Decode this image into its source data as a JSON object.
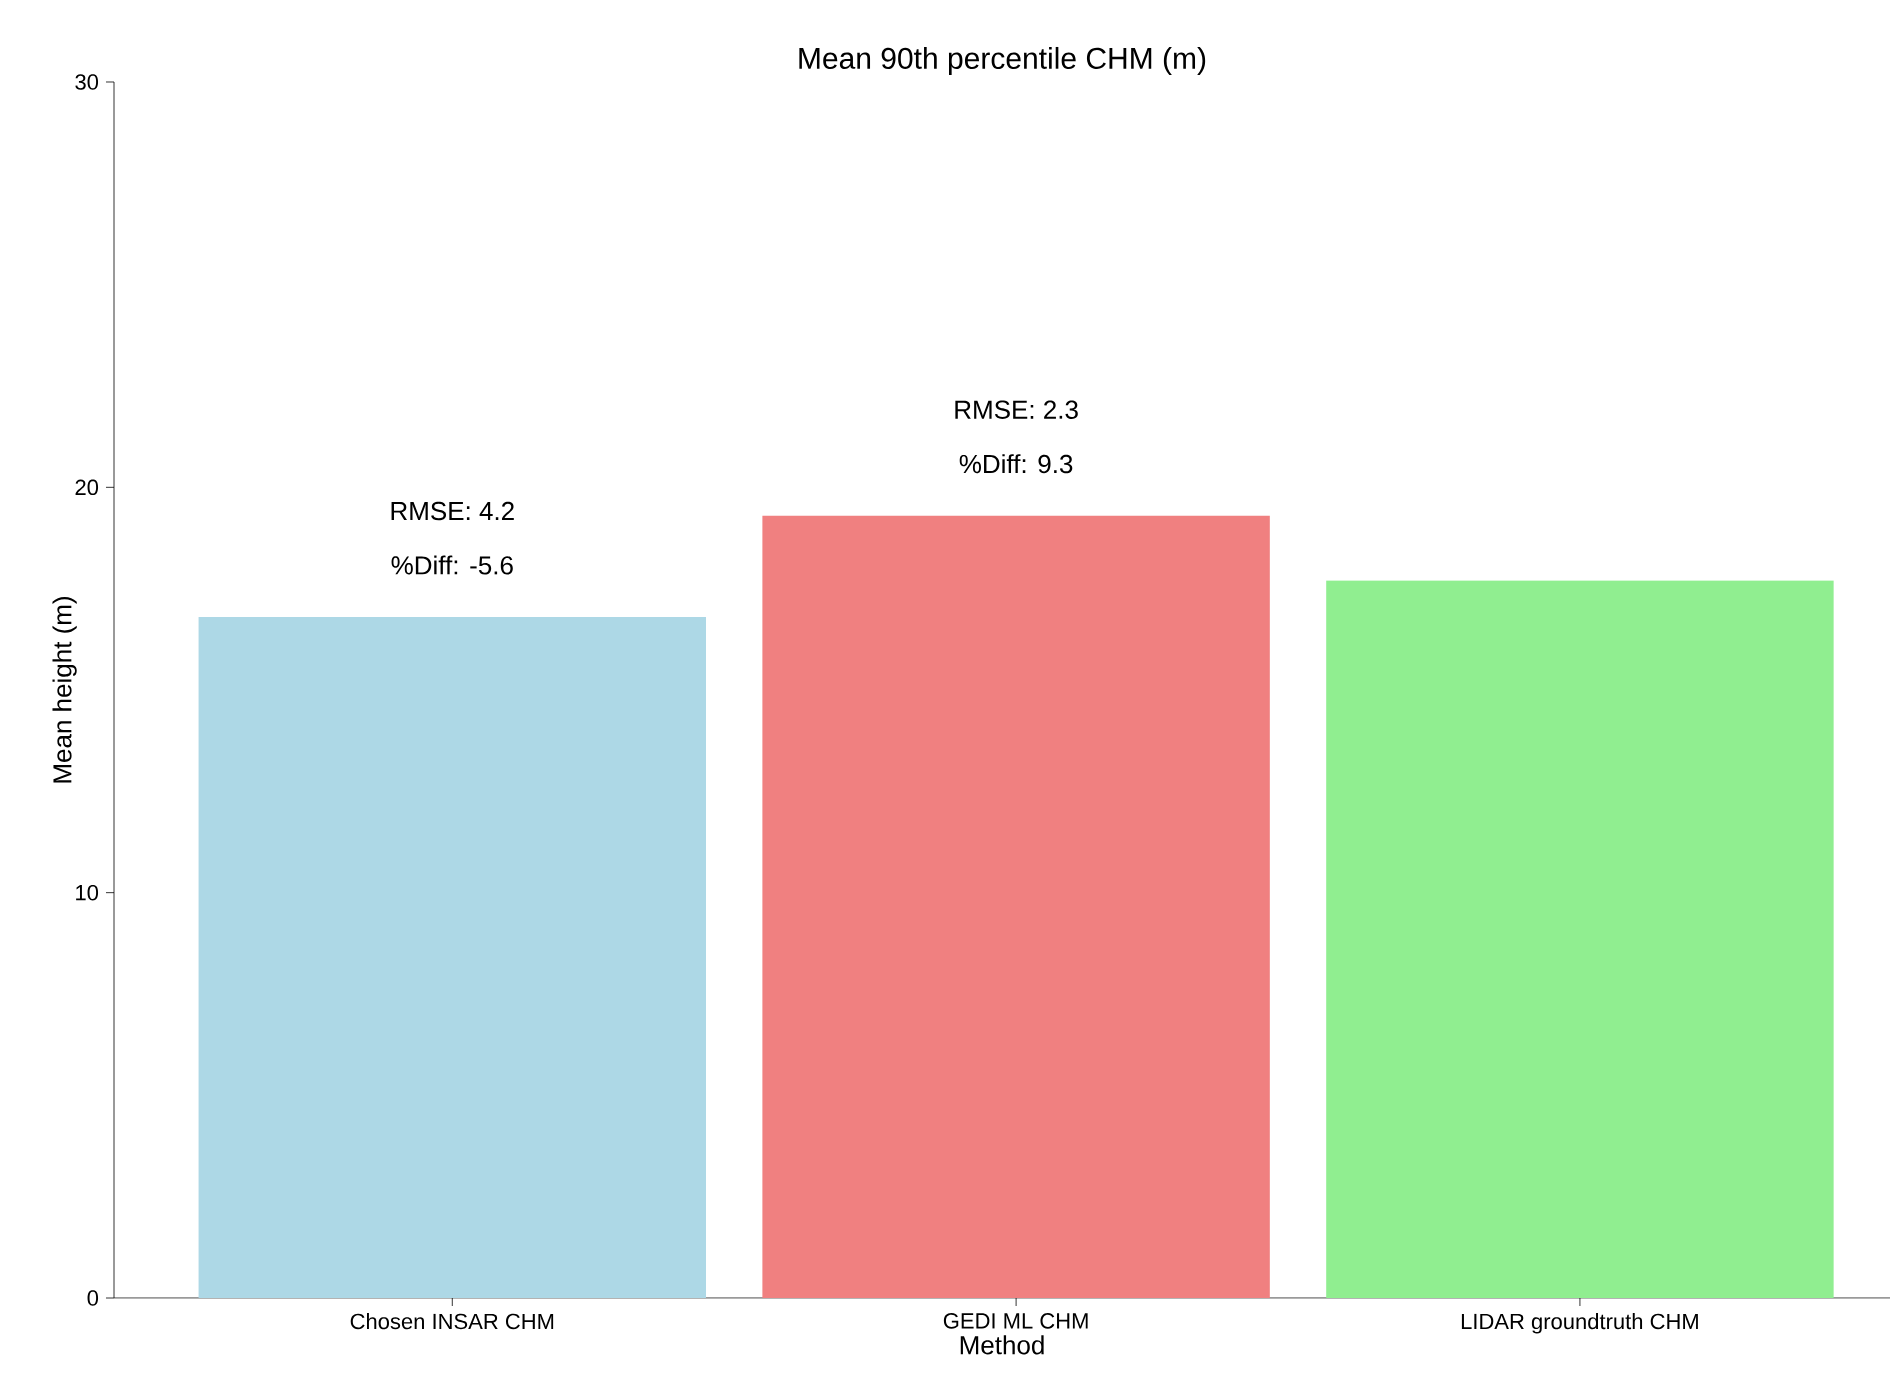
{
  "chart_data": {
    "type": "bar",
    "title": "Mean 90th percentile CHM (m)",
    "xlabel": "Method",
    "ylabel": "Mean height (m)",
    "categories": [
      "Chosen INSAR CHM",
      "GEDI ML CHM",
      "LIDAR groundtruth CHM"
    ],
    "values": [
      16.8,
      19.3,
      17.7
    ],
    "colors": [
      "#add8e6",
      "#f08080",
      "#90ee90"
    ],
    "ylim": [
      0,
      30
    ],
    "yticks": [
      0,
      10,
      20,
      30
    ],
    "grid": false,
    "annotations": [
      "RMSE: 4.2",
      "%Diff: -5.6",
      "RMSE: 2.3",
      "%Diff: 9.3"
    ]
  }
}
